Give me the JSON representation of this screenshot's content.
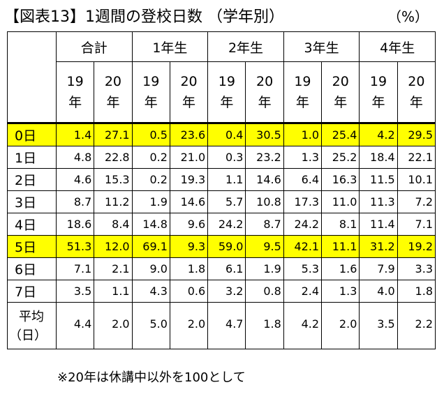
{
  "title": "【図表13】1週間の登校日数 （学年別）",
  "unit": "（%）",
  "groups": [
    "合計",
    "1年生",
    "2年生",
    "3年生",
    "4年生"
  ],
  "years": [
    {
      "num": "19",
      "kanji": "年"
    },
    {
      "num": "20",
      "kanji": "年"
    }
  ],
  "rows": [
    {
      "label": "0日",
      "values": [
        "1.4",
        "27.1",
        "0.5",
        "23.6",
        "0.4",
        "30.5",
        "1.0",
        "25.4",
        "4.2",
        "29.5"
      ],
      "highlight": true
    },
    {
      "label": "1日",
      "values": [
        "4.8",
        "22.8",
        "0.2",
        "21.0",
        "0.3",
        "23.2",
        "1.3",
        "25.2",
        "18.4",
        "22.1"
      ],
      "highlight": false
    },
    {
      "label": "2日",
      "values": [
        "4.6",
        "15.3",
        "0.2",
        "19.3",
        "1.1",
        "14.6",
        "6.4",
        "16.3",
        "11.5",
        "10.1"
      ],
      "highlight": false
    },
    {
      "label": "3日",
      "values": [
        "8.7",
        "11.2",
        "1.9",
        "14.6",
        "5.7",
        "10.8",
        "17.3",
        "11.0",
        "11.3",
        "7.2"
      ],
      "highlight": false
    },
    {
      "label": "4日",
      "values": [
        "18.6",
        "8.4",
        "14.8",
        "9.6",
        "24.2",
        "8.7",
        "24.2",
        "8.1",
        "11.4",
        "7.1"
      ],
      "highlight": false
    },
    {
      "label": "5日",
      "values": [
        "51.3",
        "12.0",
        "69.1",
        "9.3",
        "59.0",
        "9.5",
        "42.1",
        "11.1",
        "31.2",
        "19.2"
      ],
      "highlight": true
    },
    {
      "label": "6日",
      "values": [
        "7.1",
        "2.1",
        "9.0",
        "1.8",
        "6.1",
        "1.9",
        "5.3",
        "1.6",
        "7.9",
        "3.3"
      ],
      "highlight": false
    },
    {
      "label": "7日",
      "values": [
        "3.5",
        "1.1",
        "4.3",
        "0.6",
        "3.2",
        "0.8",
        "2.4",
        "1.3",
        "4.0",
        "1.8"
      ],
      "highlight": false
    }
  ],
  "average": {
    "label_line1": "平均",
    "label_line2": "（日）",
    "values": [
      "4.4",
      "2.0",
      "5.0",
      "2.0",
      "4.7",
      "1.8",
      "4.2",
      "2.0",
      "3.5",
      "2.2"
    ]
  },
  "note": "※20年は休講中以外を100として",
  "colors": {
    "highlight": "#ffff00",
    "border": "#000000"
  }
}
